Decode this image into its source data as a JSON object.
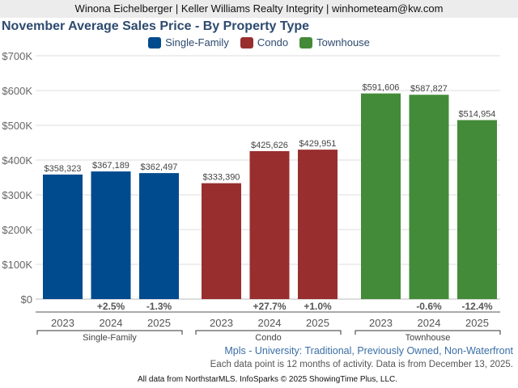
{
  "header": {
    "agent_line": "Winona Eichelberger | Keller Williams Realty Integrity | winhometeam@kw.com"
  },
  "chart_data": {
    "type": "bar",
    "title": "November Average Sales Price - By Property Type",
    "xlabel": "",
    "ylabel": "",
    "ylim": [
      0,
      700000
    ],
    "yticks": [
      0,
      100000,
      200000,
      300000,
      400000,
      500000,
      600000,
      700000
    ],
    "ytick_labels": [
      "$0",
      "$100K",
      "$200K",
      "$300K",
      "$400K",
      "$500K",
      "$600K",
      "$700K"
    ],
    "grid": true,
    "legend_position": "top-center",
    "legend": [
      {
        "name": "Single-Family",
        "color": "#004b8d"
      },
      {
        "name": "Condo",
        "color": "#992e2e"
      },
      {
        "name": "Townhouse",
        "color": "#438b38"
      }
    ],
    "groups": [
      {
        "name": "Single-Family",
        "color": "#004b8d",
        "categories": [
          "2023",
          "2024",
          "2025"
        ],
        "values": [
          358323,
          367189,
          362497
        ],
        "value_labels": [
          "$358,323",
          "$367,189",
          "$362,497"
        ],
        "pct_change": [
          "",
          "+2.5%",
          "-1.3%"
        ]
      },
      {
        "name": "Condo",
        "color": "#992e2e",
        "categories": [
          "2023",
          "2024",
          "2025"
        ],
        "values": [
          333390,
          425626,
          429951
        ],
        "value_labels": [
          "$333,390",
          "$425,626",
          "$429,951"
        ],
        "pct_change": [
          "",
          "+27.7%",
          "+1.0%"
        ]
      },
      {
        "name": "Townhouse",
        "color": "#438b38",
        "categories": [
          "2023",
          "2024",
          "2025"
        ],
        "values": [
          591606,
          587827,
          514954
        ],
        "value_labels": [
          "$591,606",
          "$587,827",
          "$514,954"
        ],
        "pct_change": [
          "",
          "-0.6%",
          "-12.4%"
        ]
      }
    ]
  },
  "footer": {
    "area_line": "Mpls - University: Traditional, Previously Owned, Non-Waterfront",
    "note_line": "Each data point is 12 months of activity. Data is from December 13, 2025.",
    "source_line": "All data from NorthstarMLS. InfoSparks © 2025 ShowingTime Plus, LLC."
  }
}
